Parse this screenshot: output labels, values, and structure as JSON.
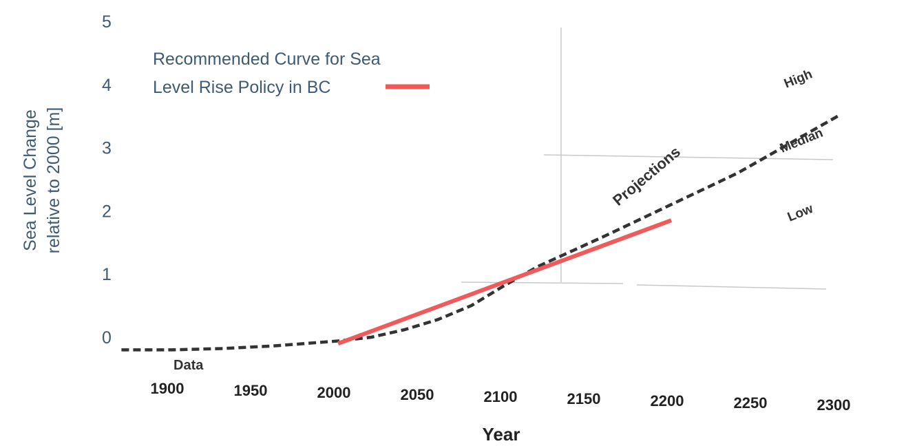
{
  "chart_data": {
    "type": "line",
    "title": "",
    "xlabel": "Year",
    "ylabel_line1": "Sea Level Change",
    "ylabel_line2": "relative to 2000 [m]",
    "xlim": [
      1870,
      2300
    ],
    "ylim": [
      -0.4,
      5
    ],
    "x_ticks": [
      "1900",
      "1950",
      "2000",
      "2050",
      "2100",
      "2150",
      "2200",
      "2250",
      "2300"
    ],
    "y_ticks": [
      "0",
      "1",
      "2",
      "3",
      "4",
      "5"
    ],
    "grid": false,
    "legend": {
      "line1": "Recommended Curve for Sea",
      "line2": "Level Rise Policy in BC",
      "placement": "top-left",
      "swatch_color": "#f05a5a"
    },
    "annotations": {
      "data": "Data",
      "projections": "Projections",
      "high": "High",
      "median": "Median",
      "low": "Low"
    },
    "series": [
      {
        "name": "Recommended Curve for Sea Level Rise Policy in BC",
        "style": "solid",
        "color": "#f05a5a",
        "x": [
          2000,
          2200
        ],
        "y": [
          -0.1,
          1.85
        ]
      },
      {
        "style": "dashed",
        "color": "#333333",
        "x": [
          1870,
          1900,
          1930,
          1960,
          1980,
          2000,
          2020,
          2040,
          2060,
          2080,
          2100,
          2120,
          2140,
          2160,
          2180,
          2200,
          2220,
          2240,
          2260,
          2280,
          2300
        ],
        "y": [
          -0.2,
          -0.2,
          -0.18,
          -0.14,
          -0.1,
          -0.06,
          0.0,
          0.12,
          0.28,
          0.5,
          0.82,
          1.12,
          1.36,
          1.6,
          1.85,
          2.1,
          2.35,
          2.6,
          2.9,
          3.2,
          3.5
        ]
      }
    ]
  }
}
